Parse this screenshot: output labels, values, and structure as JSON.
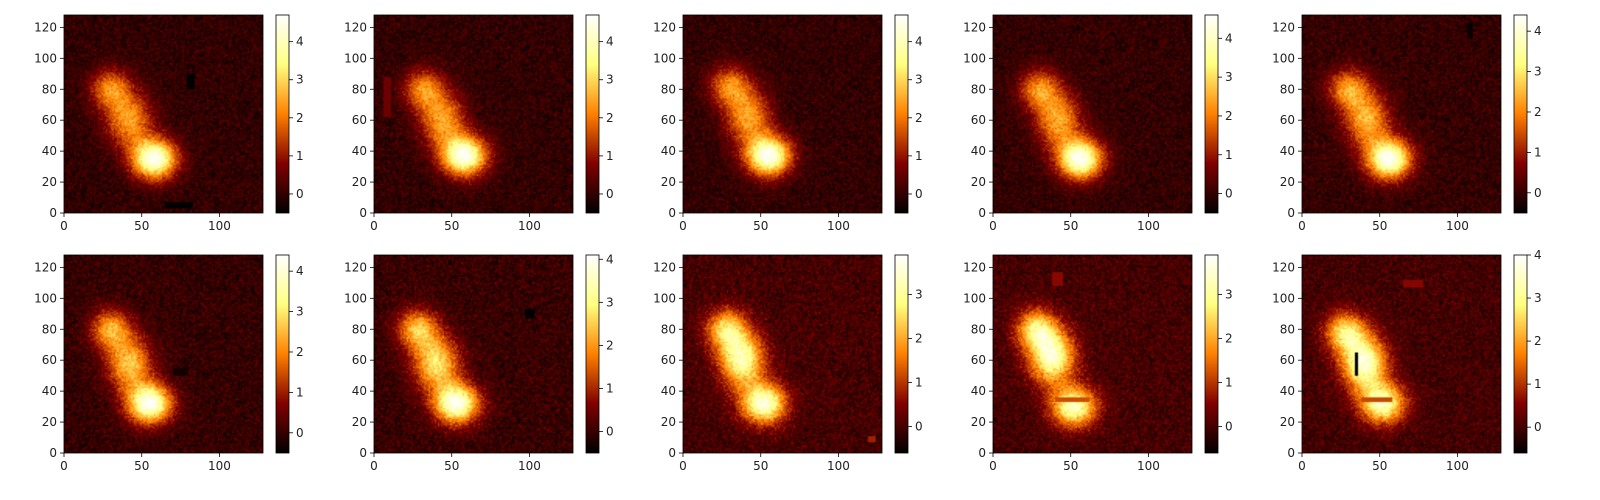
{
  "chart_data": [
    {
      "type": "heatmap",
      "colormap": "afmhot",
      "xlim": [
        0,
        128
      ],
      "ylim": [
        0,
        128
      ],
      "x_ticks": [
        "0",
        "50",
        "100"
      ],
      "y_ticks": [
        "0",
        "20",
        "40",
        "60",
        "80",
        "100",
        "120"
      ],
      "blobs": [
        {
          "x": 30,
          "y": 80,
          "sx": 9,
          "sy": 9,
          "a": 2.2
        },
        {
          "x": 42,
          "y": 60,
          "sx": 10,
          "sy": 12,
          "a": 2.4
        },
        {
          "x": 58,
          "y": 35,
          "sx": 10,
          "sy": 9,
          "a": 4.6
        }
      ],
      "artifacts": [
        {
          "x0": 79,
          "x1": 84,
          "y0": 80,
          "y1": 90,
          "v": -0.5
        },
        {
          "x0": 65,
          "x1": 83,
          "y0": 3,
          "y1": 7,
          "v": -0.6
        }
      ],
      "colorbar": {
        "min": -0.5,
        "max": 4.7,
        "ticks": [
          "0",
          "1",
          "2",
          "3",
          "4"
        ]
      }
    },
    {
      "type": "heatmap",
      "colormap": "afmhot",
      "xlim": [
        0,
        128
      ],
      "ylim": [
        0,
        128
      ],
      "x_ticks": [
        "0",
        "50",
        "100"
      ],
      "y_ticks": [
        "0",
        "20",
        "40",
        "60",
        "80",
        "100",
        "120"
      ],
      "blobs": [
        {
          "x": 32,
          "y": 80,
          "sx": 9,
          "sy": 9,
          "a": 2.2
        },
        {
          "x": 44,
          "y": 60,
          "sx": 10,
          "sy": 12,
          "a": 2.4
        },
        {
          "x": 58,
          "y": 37,
          "sx": 10,
          "sy": 9,
          "a": 4.6
        }
      ],
      "artifacts": [
        {
          "x0": 6,
          "x1": 11,
          "y0": 62,
          "y1": 88,
          "v": 0.6
        }
      ],
      "colorbar": {
        "min": -0.5,
        "max": 4.7,
        "ticks": [
          "0",
          "1",
          "2",
          "3",
          "4"
        ]
      }
    },
    {
      "type": "heatmap",
      "colormap": "afmhot",
      "xlim": [
        0,
        128
      ],
      "ylim": [
        0,
        128
      ],
      "x_ticks": [
        "0",
        "50",
        "100"
      ],
      "y_ticks": [
        "0",
        "20",
        "40",
        "60",
        "80",
        "100",
        "120"
      ],
      "blobs": [
        {
          "x": 30,
          "y": 82,
          "sx": 9,
          "sy": 9,
          "a": 2.2
        },
        {
          "x": 42,
          "y": 62,
          "sx": 10,
          "sy": 12,
          "a": 2.4
        },
        {
          "x": 55,
          "y": 37,
          "sx": 10,
          "sy": 9,
          "a": 4.6
        }
      ],
      "artifacts": [],
      "colorbar": {
        "min": -0.5,
        "max": 4.7,
        "ticks": [
          "0",
          "1",
          "2",
          "3",
          "4"
        ]
      }
    },
    {
      "type": "heatmap",
      "colormap": "afmhot",
      "xlim": [
        0,
        128
      ],
      "ylim": [
        0,
        128
      ],
      "x_ticks": [
        "0",
        "50",
        "100"
      ],
      "y_ticks": [
        "0",
        "20",
        "40",
        "60",
        "80",
        "100",
        "120"
      ],
      "blobs": [
        {
          "x": 30,
          "y": 80,
          "sx": 9,
          "sy": 9,
          "a": 2.2
        },
        {
          "x": 42,
          "y": 60,
          "sx": 10,
          "sy": 12,
          "a": 2.4
        },
        {
          "x": 56,
          "y": 35,
          "sx": 10,
          "sy": 9,
          "a": 4.5
        }
      ],
      "artifacts": [],
      "colorbar": {
        "min": -0.5,
        "max": 4.6,
        "ticks": [
          "0",
          "1",
          "2",
          "3",
          "4"
        ]
      }
    },
    {
      "type": "heatmap",
      "colormap": "afmhot",
      "xlim": [
        0,
        128
      ],
      "ylim": [
        0,
        128
      ],
      "x_ticks": [
        "0",
        "50",
        "100"
      ],
      "y_ticks": [
        "0",
        "20",
        "40",
        "60",
        "80",
        "100",
        "120"
      ],
      "blobs": [
        {
          "x": 30,
          "y": 80,
          "sx": 9,
          "sy": 9,
          "a": 2.2
        },
        {
          "x": 42,
          "y": 60,
          "sx": 10,
          "sy": 12,
          "a": 2.4
        },
        {
          "x": 56,
          "y": 35,
          "sx": 10,
          "sy": 9,
          "a": 4.3
        }
      ],
      "artifacts": [
        {
          "x0": 106,
          "x1": 110,
          "y0": 113,
          "y1": 123,
          "v": -0.4
        }
      ],
      "colorbar": {
        "min": -0.5,
        "max": 4.4,
        "ticks": [
          "0",
          "1",
          "2",
          "3",
          "4"
        ]
      }
    },
    {
      "type": "heatmap",
      "colormap": "afmhot",
      "xlim": [
        0,
        128
      ],
      "ylim": [
        0,
        128
      ],
      "x_ticks": [
        "0",
        "50",
        "100"
      ],
      "y_ticks": [
        "0",
        "20",
        "40",
        "60",
        "80",
        "100",
        "120"
      ],
      "blobs": [
        {
          "x": 30,
          "y": 80,
          "sx": 9,
          "sy": 9,
          "a": 2.3
        },
        {
          "x": 42,
          "y": 58,
          "sx": 10,
          "sy": 12,
          "a": 2.6
        },
        {
          "x": 55,
          "y": 32,
          "sx": 10,
          "sy": 9,
          "a": 4.3
        }
      ],
      "artifacts": [
        {
          "x0": 70,
          "x1": 80,
          "y0": 50,
          "y1": 55,
          "v": -0.3
        }
      ],
      "colorbar": {
        "min": -0.5,
        "max": 4.4,
        "ticks": [
          "0",
          "1",
          "2",
          "3",
          "4"
        ]
      }
    },
    {
      "type": "heatmap",
      "colormap": "afmhot",
      "xlim": [
        0,
        128
      ],
      "ylim": [
        0,
        128
      ],
      "x_ticks": [
        "0",
        "50",
        "100"
      ],
      "y_ticks": [
        "0",
        "20",
        "40",
        "60",
        "80",
        "100",
        "120"
      ],
      "blobs": [
        {
          "x": 28,
          "y": 80,
          "sx": 9,
          "sy": 9,
          "a": 2.4
        },
        {
          "x": 40,
          "y": 58,
          "sx": 10,
          "sy": 12,
          "a": 2.8
        },
        {
          "x": 53,
          "y": 32,
          "sx": 10,
          "sy": 9,
          "a": 4.0
        }
      ],
      "artifacts": [
        {
          "x0": 97,
          "x1": 103,
          "y0": 87,
          "y1": 93,
          "v": -0.5
        }
      ],
      "colorbar": {
        "min": -0.5,
        "max": 4.1,
        "ticks": [
          "0",
          "1",
          "2",
          "3",
          "4"
        ]
      }
    },
    {
      "type": "heatmap",
      "colormap": "afmhot",
      "xlim": [
        0,
        128
      ],
      "ylim": [
        0,
        128
      ],
      "x_ticks": [
        "0",
        "50",
        "100"
      ],
      "y_ticks": [
        "0",
        "20",
        "40",
        "60",
        "80",
        "100",
        "120"
      ],
      "blobs": [
        {
          "x": 28,
          "y": 80,
          "sx": 9,
          "sy": 9,
          "a": 2.5
        },
        {
          "x": 38,
          "y": 60,
          "sx": 10,
          "sy": 12,
          "a": 3.2
        },
        {
          "x": 52,
          "y": 32,
          "sx": 10,
          "sy": 9,
          "a": 3.6
        }
      ],
      "artifacts": [
        {
          "x0": 119,
          "x1": 124,
          "y0": 7,
          "y1": 11,
          "v": 0.8
        }
      ],
      "colorbar": {
        "min": -0.6,
        "max": 3.9,
        "ticks": [
          "0",
          "1",
          "2",
          "3"
        ]
      }
    },
    {
      "type": "heatmap",
      "colormap": "afmhot",
      "xlim": [
        0,
        128
      ],
      "ylim": [
        0,
        128
      ],
      "x_ticks": [
        "0",
        "50",
        "100"
      ],
      "y_ticks": [
        "0",
        "20",
        "40",
        "60",
        "80",
        "100",
        "120"
      ],
      "blobs": [
        {
          "x": 28,
          "y": 80,
          "sx": 9,
          "sy": 9,
          "a": 2.6
        },
        {
          "x": 38,
          "y": 62,
          "sx": 10,
          "sy": 12,
          "a": 3.4
        },
        {
          "x": 52,
          "y": 30,
          "sx": 10,
          "sy": 9,
          "a": 3.4
        }
      ],
      "artifacts": [
        {
          "x0": 38,
          "x1": 45,
          "y0": 108,
          "y1": 117,
          "v": 0.6
        },
        {
          "x0": 40,
          "x1": 62,
          "y0": 33,
          "y1": 36,
          "v": 1.2
        }
      ],
      "colorbar": {
        "min": -0.6,
        "max": 3.9,
        "ticks": [
          "0",
          "1",
          "2",
          "3"
        ]
      }
    },
    {
      "type": "heatmap",
      "colormap": "afmhot",
      "xlim": [
        0,
        128
      ],
      "ylim": [
        0,
        128
      ],
      "x_ticks": [
        "0",
        "50",
        "100"
      ],
      "y_ticks": [
        "0",
        "20",
        "40",
        "60",
        "80",
        "100",
        "120"
      ],
      "blobs": [
        {
          "x": 28,
          "y": 78,
          "sx": 9,
          "sy": 9,
          "a": 2.7
        },
        {
          "x": 40,
          "y": 58,
          "sx": 10,
          "sy": 12,
          "a": 3.6
        },
        {
          "x": 52,
          "y": 32,
          "sx": 10,
          "sy": 9,
          "a": 3.4
        }
      ],
      "artifacts": [
        {
          "x0": 65,
          "x1": 78,
          "y0": 107,
          "y1": 112,
          "v": 0.6
        },
        {
          "x0": 34,
          "x1": 36,
          "y0": 50,
          "y1": 65,
          "v": -0.6
        },
        {
          "x0": 38,
          "x1": 58,
          "y0": 33,
          "y1": 36,
          "v": 1.2
        }
      ],
      "colorbar": {
        "min": -0.6,
        "max": 4.0,
        "ticks": [
          "0",
          "1",
          "2",
          "3",
          "4"
        ]
      }
    }
  ]
}
